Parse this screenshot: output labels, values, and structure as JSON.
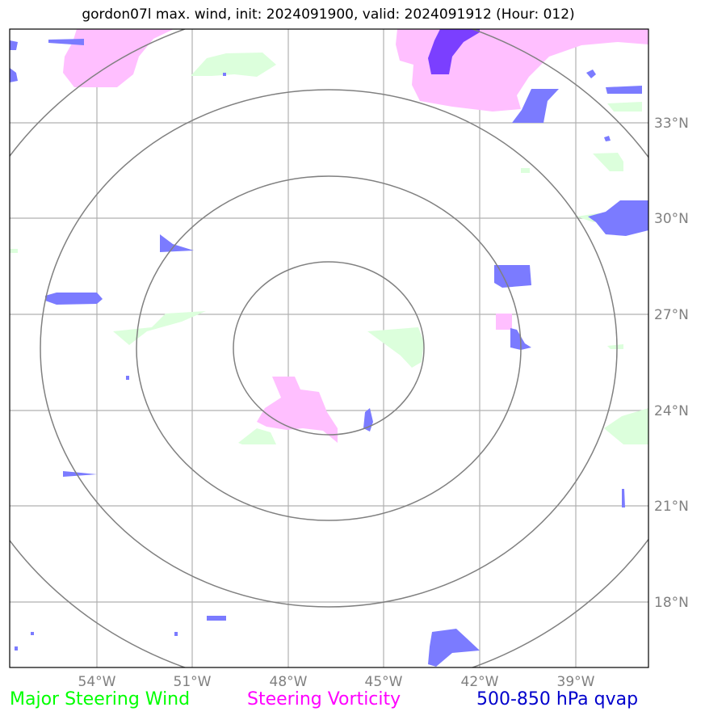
{
  "title": "gordon07l max. wind, init: 2024091900, valid: 2024091912 (Hour: 012)",
  "map": {
    "lon_ticks": [
      "54°W",
      "51°W",
      "48°W",
      "45°W",
      "42°W",
      "39°W"
    ],
    "lat_ticks": [
      "33°N",
      "30°N",
      "27°N",
      "24°N",
      "21°N",
      "18°N"
    ],
    "range_rings": 4
  },
  "legend": {
    "wind": {
      "label": "Major Steering Wind",
      "color": "#00ff00"
    },
    "vorticity": {
      "label": "Steering Vorticity",
      "color": "#ff00ff"
    },
    "qvap": {
      "label": "500-850 hPa qvap",
      "color": "#0000cc"
    }
  },
  "colors": {
    "grid": "#b0b0b0",
    "ring": "#808080",
    "wind_fill": "#dcffdc",
    "vort_fill": "#ffbfff",
    "qvap_fill": "#7b7bff",
    "qvap_dark": "#7b3fff"
  }
}
